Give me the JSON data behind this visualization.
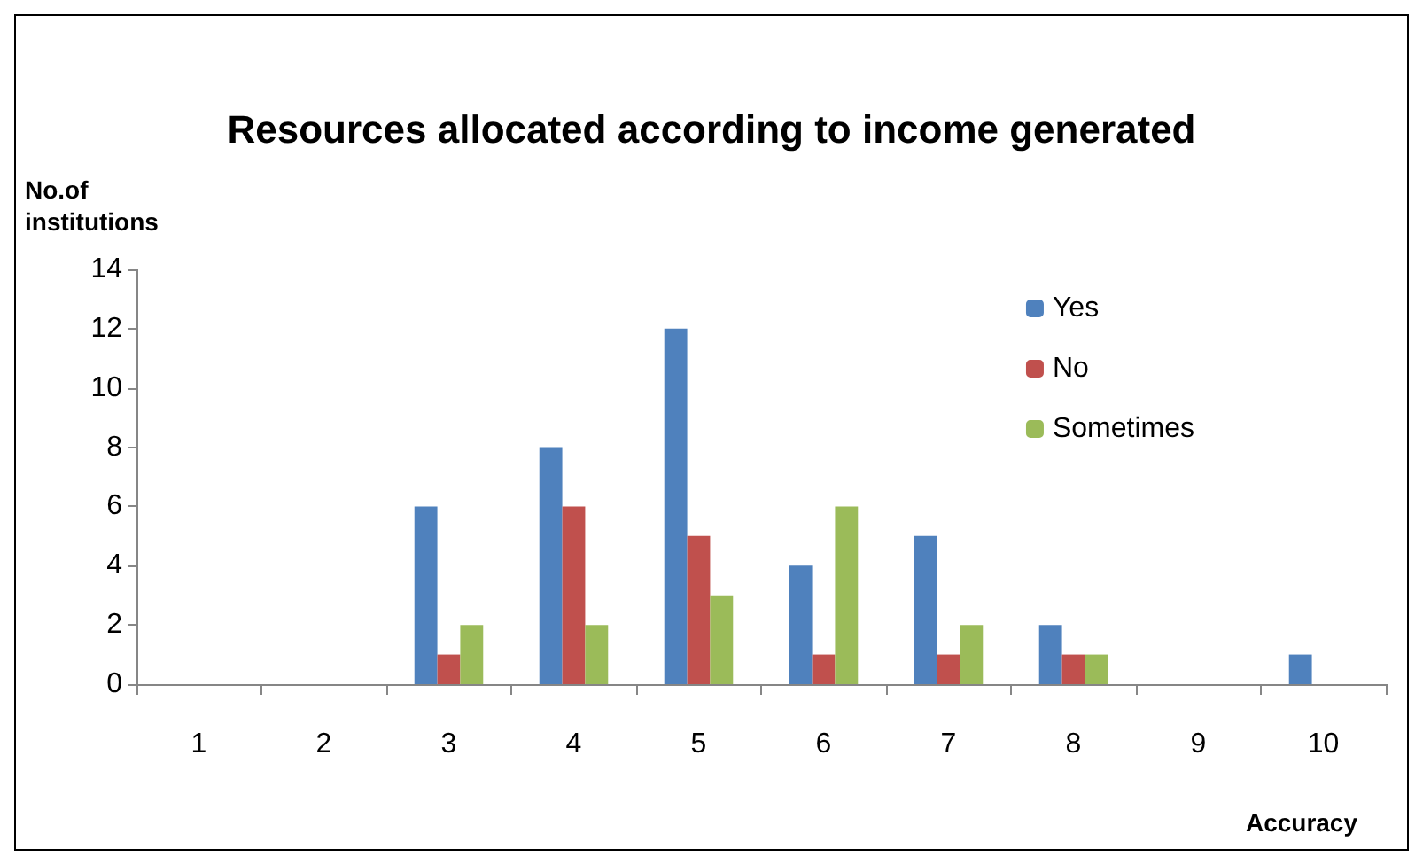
{
  "chart_data": {
    "type": "bar",
    "title": "Resources allocated according to income generated",
    "xlabel": "Accuracy",
    "ylabel": "No.of institutions",
    "categories": [
      "1",
      "2",
      "3",
      "4",
      "5",
      "6",
      "7",
      "8",
      "9",
      "10"
    ],
    "series": [
      {
        "name": "Yes",
        "color": "#4f81bd",
        "values": [
          0,
          0,
          6,
          8,
          12,
          4,
          5,
          2,
          0,
          1
        ]
      },
      {
        "name": "No",
        "color": "#c0504d",
        "values": [
          0,
          0,
          1,
          6,
          5,
          1,
          1,
          1,
          0,
          0
        ]
      },
      {
        "name": "Sometimes",
        "color": "#9bbb59",
        "values": [
          0,
          0,
          2,
          2,
          3,
          6,
          2,
          1,
          0,
          0
        ]
      }
    ],
    "ylim": [
      0,
      14
    ],
    "yticks": [
      0,
      2,
      4,
      6,
      8,
      10,
      12,
      14
    ],
    "grid": false,
    "legend": "top right"
  }
}
